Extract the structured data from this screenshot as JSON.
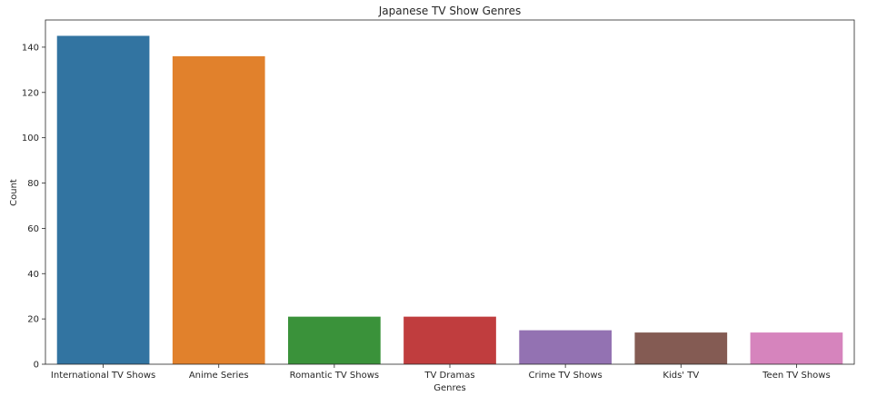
{
  "chart_data": {
    "type": "bar",
    "title": "Japanese TV Show Genres",
    "xlabel": "Genres",
    "ylabel": "Count",
    "ylim": [
      0,
      152
    ],
    "yticks": [
      0,
      20,
      40,
      60,
      80,
      100,
      120,
      140
    ],
    "grid": false,
    "categories": [
      "International TV Shows",
      "Anime Series",
      "Romantic TV Shows",
      "TV Dramas",
      "Crime TV Shows",
      "Kids' TV",
      "Teen TV Shows"
    ],
    "values": [
      145,
      136,
      21,
      21,
      15,
      14,
      14
    ],
    "colors": [
      "#3274a1",
      "#e1812c",
      "#3a923a",
      "#c03d3e",
      "#9372b2",
      "#845b53",
      "#d684bd"
    ]
  }
}
